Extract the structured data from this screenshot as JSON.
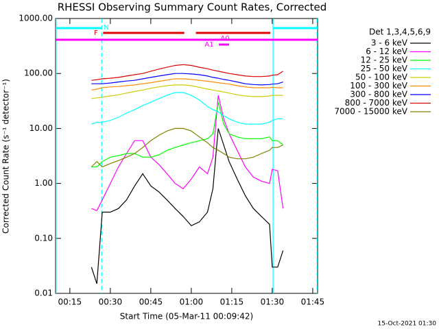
{
  "chart_data": {
    "type": "line",
    "title": "RHESSI Observing Summary Count Rates, Corrected",
    "xlabel": "Start Time (05-Mar-11 00:09:42)",
    "ylabel": "Corrected Count Rate (s⁻¹ detector⁻¹)",
    "legend_title": "Det 1,3,4,5,6,9",
    "footer": "15-Oct-2021 01:30",
    "yscale": "log",
    "xlim": [
      9.7,
      106.8
    ],
    "ylim": [
      0.01,
      1000
    ],
    "yticks": [
      {
        "value": 1000,
        "label": "1000.00"
      },
      {
        "value": 100,
        "label": "100.00"
      },
      {
        "value": 10,
        "label": "10.00"
      },
      {
        "value": 1,
        "label": "1.00"
      },
      {
        "value": 0.1,
        "label": "0.10"
      },
      {
        "value": 0.01,
        "label": "0.01"
      }
    ],
    "xticks": [
      {
        "value": 15,
        "label": "00:15"
      },
      {
        "value": 30,
        "label": "00:30"
      },
      {
        "value": 45,
        "label": "00:45"
      },
      {
        "value": 60,
        "label": "01:00"
      },
      {
        "value": 75,
        "label": "01:15"
      },
      {
        "value": 90,
        "label": "01:30"
      },
      {
        "value": 105,
        "label": "01:45"
      }
    ],
    "x": [
      23,
      25,
      27,
      30,
      33,
      36,
      39,
      42,
      45,
      48,
      51,
      54,
      57,
      60,
      63,
      66,
      68,
      70,
      72,
      74,
      77,
      80,
      83,
      86,
      89,
      90,
      92,
      94
    ],
    "series": [
      {
        "name": "3 - 6 keV",
        "color": "#000000",
        "values": [
          0.03,
          0.015,
          0.3,
          0.3,
          0.35,
          0.5,
          0.9,
          1.5,
          0.9,
          0.7,
          0.5,
          0.35,
          0.25,
          0.17,
          0.2,
          0.3,
          0.8,
          10,
          5,
          2.5,
          1.2,
          0.6,
          0.35,
          0.25,
          0.18,
          0.03,
          0.03,
          0.06
        ]
      },
      {
        "name": "6 - 12 keV",
        "color": "#ff00ff",
        "values": [
          0.35,
          0.32,
          0.5,
          1.0,
          2.0,
          3.5,
          6,
          6,
          3,
          2.2,
          1.5,
          1.0,
          0.8,
          1.2,
          2,
          1.5,
          3,
          40,
          15,
          8,
          4,
          2,
          1.3,
          1.1,
          1.0,
          1.8,
          1.7,
          0.35
        ]
      },
      {
        "name": "12 - 25 keV",
        "color": "#00ff00",
        "values": [
          2,
          2,
          2.5,
          3,
          3.2,
          3.5,
          3.5,
          3,
          3,
          3.3,
          4,
          4.5,
          5,
          5.5,
          6,
          6.5,
          8,
          30,
          12,
          8,
          7,
          6.5,
          6.5,
          6.5,
          7,
          6,
          6,
          5
        ]
      },
      {
        "name": "25 - 50 keV",
        "color": "#00ffff",
        "values": [
          12,
          13,
          13,
          14,
          16,
          19,
          22,
          26,
          30,
          35,
          40,
          45,
          45,
          40,
          33,
          25,
          22,
          20,
          17,
          15,
          13,
          12,
          12,
          12,
          13,
          14,
          15,
          15
        ]
      },
      {
        "name": "50 - 100 keV",
        "color": "#cccc00",
        "values": [
          35,
          36,
          37,
          39,
          41,
          44,
          47,
          50,
          54,
          57,
          60,
          62,
          62,
          60,
          56,
          52,
          50,
          48,
          46,
          44,
          41,
          39,
          38,
          38,
          39,
          40,
          40,
          40
        ]
      },
      {
        "name": "100 - 300 keV",
        "color": "#ff8c00",
        "values": [
          50,
          52,
          55,
          57,
          58,
          60,
          62,
          65,
          68,
          72,
          76,
          80,
          80,
          78,
          75,
          72,
          70,
          68,
          66,
          64,
          60,
          57,
          55,
          55,
          55,
          56,
          55,
          55
        ]
      },
      {
        "name": "300 - 800 keV",
        "color": "#0000ff",
        "values": [
          65,
          65,
          65,
          67,
          70,
          73,
          75,
          80,
          85,
          90,
          95,
          100,
          100,
          98,
          95,
          90,
          85,
          82,
          78,
          75,
          70,
          65,
          63,
          62,
          63,
          64,
          65,
          70
        ]
      },
      {
        "name": "800 - 7000 keV",
        "color": "#dd0000",
        "values": [
          75,
          77,
          80,
          82,
          85,
          90,
          95,
          100,
          110,
          120,
          130,
          140,
          145,
          140,
          130,
          122,
          115,
          110,
          105,
          100,
          95,
          90,
          88,
          88,
          90,
          93,
          95,
          110
        ]
      },
      {
        "name": "7000 - 15000 keV",
        "color": "#808000",
        "values": [
          2,
          2.5,
          2,
          2.3,
          2.6,
          3,
          3.5,
          4.5,
          6,
          7.5,
          9,
          10,
          10,
          9,
          7,
          5.5,
          4.5,
          4,
          3.5,
          3,
          2.8,
          2.8,
          3,
          3.5,
          4,
          4.5,
          4.5,
          5
        ]
      }
    ],
    "flags": [
      {
        "label": "N",
        "color": "#00ffff",
        "spans": [
          [
            9.7,
            26.8
          ],
          [
            90.3,
            106.8
          ]
        ]
      },
      {
        "label": "F",
        "color": "#dd0000",
        "spans": [
          [
            27.3,
            57.4
          ],
          [
            61.7,
            89.3
          ]
        ]
      },
      {
        "label": "A0",
        "color": "#ff00ff",
        "spans": [
          [
            9.7,
            106.8
          ]
        ]
      },
      {
        "label": "A1",
        "color": "#ff00ff",
        "spans": [
          [
            70.2,
            74.0
          ]
        ]
      }
    ],
    "vlines": [
      {
        "x": 9.9,
        "dashed": false,
        "color": "#00ffff"
      },
      {
        "x": 26.8,
        "dashed": true,
        "color": "#00ffff"
      },
      {
        "x": 90.3,
        "dashed": false,
        "color": "#00ffff"
      },
      {
        "x": 106.6,
        "dashed": true,
        "color": "#00ffff"
      }
    ]
  }
}
